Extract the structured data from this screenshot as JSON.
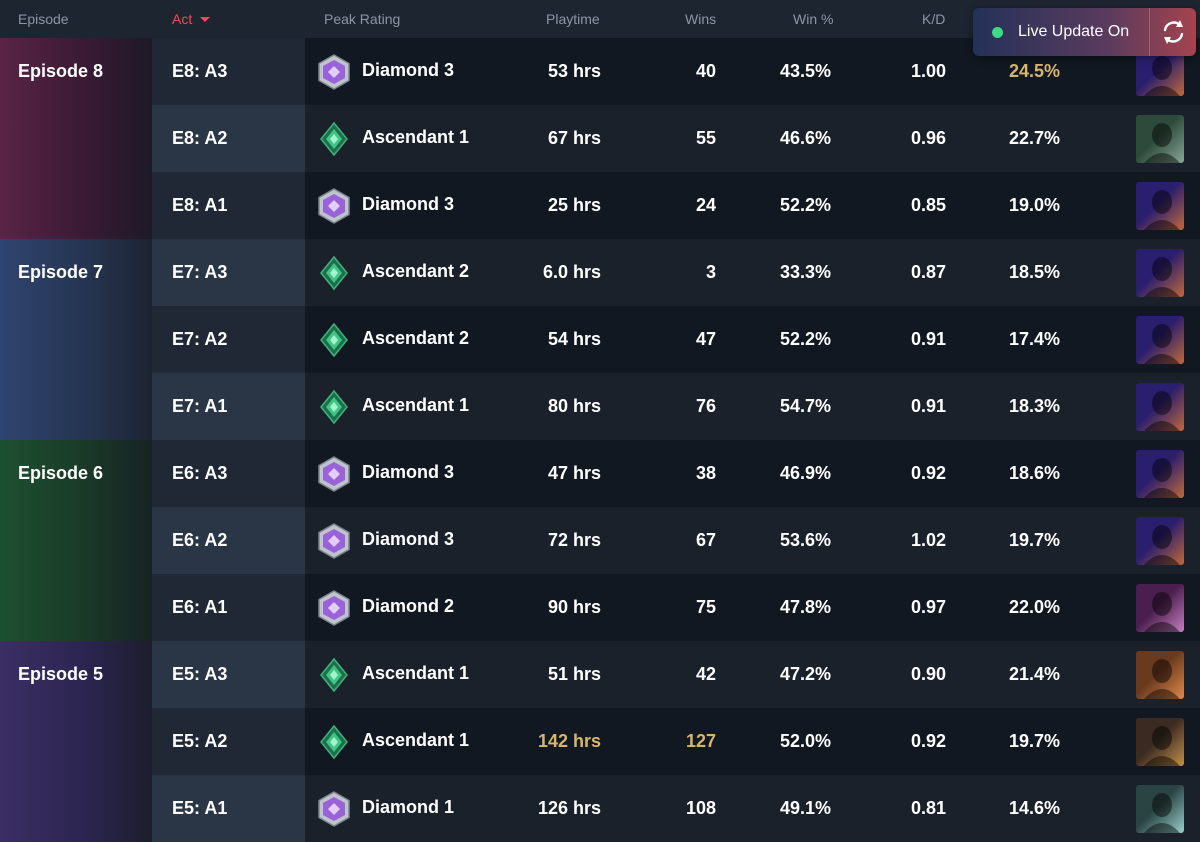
{
  "header": {
    "episode": "Episode",
    "act": "Act",
    "peak_rating": "Peak Rating",
    "playtime": "Playtime",
    "wins": "Wins",
    "win_pct": "Win %",
    "kd": "K/D"
  },
  "live_update": {
    "label": "Live Update On",
    "status_color": "#3ddc84"
  },
  "accent_color": "#ff4655",
  "rows": [
    {
      "episode": "Episode 8",
      "act": "E8: A3",
      "rank": "Diamond 3",
      "rank_icon": "diamond-rank-icon",
      "playtime": "53 hrs",
      "wins": "40",
      "win_pct": "43.5%",
      "kd": "1.00",
      "hs": "24.5%",
      "agent": "agent-neon-portrait"
    },
    {
      "episode": "",
      "act": "E8: A2",
      "rank": "Ascendant 1",
      "rank_icon": "ascendant-rank-icon",
      "playtime": "67 hrs",
      "wins": "55",
      "win_pct": "46.6%",
      "kd": "0.96",
      "hs": "22.7%",
      "agent": "agent-viper-portrait"
    },
    {
      "episode": "",
      "act": "E8: A1",
      "rank": "Diamond 3",
      "rank_icon": "diamond-rank-icon",
      "playtime": "25 hrs",
      "wins": "24",
      "win_pct": "52.2%",
      "kd": "0.85",
      "hs": "19.0%",
      "agent": "agent-neon-portrait"
    },
    {
      "episode": "Episode 7",
      "act": "E7: A3",
      "rank": "Ascendant 2",
      "rank_icon": "ascendant-rank-icon",
      "playtime": "6.0 hrs",
      "wins": "3",
      "win_pct": "33.3%",
      "kd": "0.87",
      "hs": "18.5%",
      "agent": "agent-neon-portrait"
    },
    {
      "episode": "",
      "act": "E7: A2",
      "rank": "Ascendant 2",
      "rank_icon": "ascendant-rank-icon",
      "playtime": "54 hrs",
      "wins": "47",
      "win_pct": "52.2%",
      "kd": "0.91",
      "hs": "17.4%",
      "agent": "agent-neon-portrait"
    },
    {
      "episode": "",
      "act": "E7: A1",
      "rank": "Ascendant 1",
      "rank_icon": "ascendant-rank-icon",
      "playtime": "80 hrs",
      "wins": "76",
      "win_pct": "54.7%",
      "kd": "0.91",
      "hs": "18.3%",
      "agent": "agent-neon-portrait"
    },
    {
      "episode": "Episode 6",
      "act": "E6: A3",
      "rank": "Diamond 3",
      "rank_icon": "diamond-rank-icon",
      "playtime": "47 hrs",
      "wins": "38",
      "win_pct": "46.9%",
      "kd": "0.92",
      "hs": "18.6%",
      "agent": "agent-neon-portrait"
    },
    {
      "episode": "",
      "act": "E6: A2",
      "rank": "Diamond 3",
      "rank_icon": "diamond-rank-icon",
      "playtime": "72 hrs",
      "wins": "67",
      "win_pct": "53.6%",
      "kd": "1.02",
      "hs": "19.7%",
      "agent": "agent-neon-portrait"
    },
    {
      "episode": "",
      "act": "E6: A1",
      "rank": "Diamond 2",
      "rank_icon": "diamond-rank-icon",
      "playtime": "90 hrs",
      "wins": "75",
      "win_pct": "47.8%",
      "kd": "0.97",
      "hs": "22.0%",
      "agent": "agent-reyna-portrait"
    },
    {
      "episode": "Episode 5",
      "act": "E5: A3",
      "rank": "Ascendant 1",
      "rank_icon": "ascendant-rank-icon",
      "playtime": "51 hrs",
      "wins": "42",
      "win_pct": "47.2%",
      "kd": "0.90",
      "hs": "21.4%",
      "agent": "agent-phoenix-portrait"
    },
    {
      "episode": "",
      "act": "E5: A2",
      "rank": "Ascendant 1",
      "rank_icon": "ascendant-rank-icon",
      "playtime": "142 hrs",
      "wins": "127",
      "win_pct": "52.0%",
      "kd": "0.92",
      "hs": "19.7%",
      "agent": "agent-harbor-portrait"
    },
    {
      "episode": "",
      "act": "E5: A1",
      "rank": "Diamond 1",
      "rank_icon": "diamond-rank-icon",
      "playtime": "126 hrs",
      "wins": "108",
      "win_pct": "49.1%",
      "kd": "0.81",
      "hs": "14.6%",
      "agent": "agent-sage-portrait"
    }
  ]
}
